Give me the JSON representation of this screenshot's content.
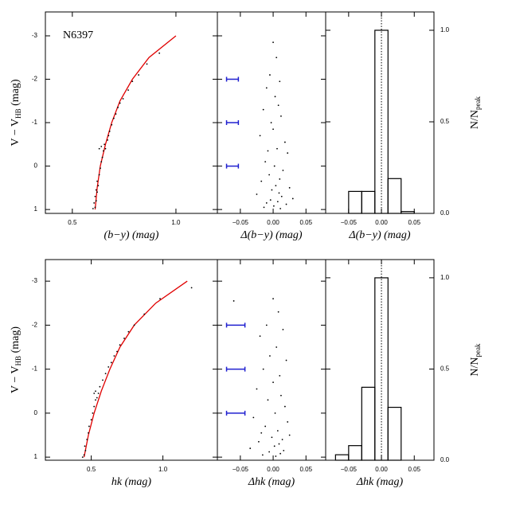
{
  "chart_data": [
    {
      "type": "scatter",
      "label": "N6397",
      "xlabel": "(b−y)  (mag)",
      "ylabel": {
        "text": "V − V",
        "sub": "HB",
        "unit": " (mag)"
      },
      "xlim": [
        0.37,
        1.2
      ],
      "ylim": [
        1.09,
        -3.55
      ],
      "xticks": [
        0.5,
        {
          "value": 1,
          "label": "1.0"
        }
      ],
      "yticks": [
        -3,
        -2,
        -1,
        0,
        1
      ],
      "series": [
        {
          "style": "line",
          "color": "#e00000",
          "x": [
            0.61,
            0.62,
            0.635,
            0.66,
            0.69,
            0.73,
            0.79,
            0.87,
            1.0
          ],
          "y": [
            1.0,
            0.5,
            0,
            -0.5,
            -1.0,
            -1.5,
            -2.0,
            -2.5,
            -3.0
          ]
        },
        {
          "style": "points",
          "color": "#000000",
          "x": [
            0.6,
            0.61,
            0.605,
            0.615,
            0.61,
            0.62,
            0.615,
            0.625,
            0.62,
            0.63,
            0.635,
            0.64,
            0.645,
            0.65,
            0.66,
            0.655,
            0.67,
            0.675,
            0.68,
            0.69,
            0.7,
            0.71,
            0.72,
            0.73,
            0.745,
            0.77,
            0.79,
            0.82,
            0.86,
            0.92,
            0.64,
            0.63
          ],
          "y": [
            0.98,
            0.95,
            0.85,
            0.8,
            0.7,
            0.6,
            0.55,
            0.45,
            0.35,
            0.2,
            0.05,
            -0.1,
            -0.2,
            -0.35,
            -0.4,
            -0.5,
            -0.6,
            -0.7,
            -0.8,
            -0.95,
            -1.1,
            -1.2,
            -1.35,
            -1.45,
            -1.55,
            -1.75,
            -1.95,
            -2.1,
            -2.35,
            -2.6,
            -0.45,
            -0.4
          ]
        }
      ]
    },
    {
      "type": "scatter",
      "xlabel": "Δ(b−y)  (mag)",
      "ytick_labels": false,
      "xlim": [
        -0.085,
        0.08
      ],
      "ylim": [
        1.09,
        -3.55
      ],
      "xticks": [
        {
          "value": -0.05,
          "label": "−0.05"
        },
        {
          "value": 0,
          "label": "0.00"
        },
        {
          "value": 0.05,
          "label": "0.05"
        }
      ],
      "yticks": [
        -3,
        -2,
        -1,
        0,
        1
      ],
      "series": [
        {
          "style": "points",
          "color": "#000000",
          "x": [
            0.0,
            0.005,
            -0.005,
            0.01,
            -0.01,
            0.003,
            0.008,
            -0.015,
            0.012,
            -0.003,
            0.0,
            -0.02,
            0.018,
            0.006,
            -0.008,
            0.022,
            -0.012,
            0.002,
            0.015,
            -0.006,
            0.01,
            -0.018,
            0.004,
            0.025,
            -0.002,
            0.009,
            -0.025,
            0.013,
            0.03,
            -0.004,
            0.007,
            -0.01,
            0.02,
            0.001,
            -0.014,
            0.011
          ],
          "y": [
            -2.85,
            -2.5,
            -2.1,
            -1.95,
            -1.8,
            -1.6,
            -1.4,
            -1.3,
            -1.15,
            -1.0,
            -0.85,
            -0.7,
            -0.55,
            -0.4,
            -0.35,
            -0.3,
            -0.1,
            0.0,
            0.1,
            0.2,
            0.3,
            0.35,
            0.45,
            0.5,
            0.55,
            0.62,
            0.65,
            0.7,
            0.75,
            0.78,
            0.82,
            0.85,
            0.88,
            0.92,
            0.95,
            0.98
          ]
        },
        {
          "style": "errorbar",
          "color": "#2020d0",
          "x": [
            -0.062,
            -0.062,
            -0.062
          ],
          "y": [
            -2,
            -1,
            0
          ],
          "xerr": [
            0.009,
            0.009,
            0.009
          ]
        }
      ]
    },
    {
      "type": "histogram",
      "xlabel": "Δ(b−y)  (mag)",
      "ylabel": {
        "text": "N/N",
        "sub": "peak"
      },
      "xlim": [
        -0.085,
        0.08
      ],
      "ylim": [
        0,
        1.1
      ],
      "xticks": [
        {
          "value": -0.05,
          "label": "−0.05"
        },
        {
          "value": 0,
          "label": "0.00"
        },
        {
          "value": 0.05,
          "label": "0.05"
        }
      ],
      "yticks": [
        {
          "value": 0,
          "label": "0.0"
        },
        0.5,
        {
          "value": 1,
          "label": "1.0"
        }
      ],
      "bins": [
        -0.05,
        -0.03,
        -0.01,
        0.01,
        0.03,
        0.05
      ],
      "values": [
        0.12,
        0.12,
        1.0,
        0.19,
        0.01
      ],
      "color": "#000000",
      "vline": 0
    },
    {
      "type": "scatter",
      "xlabel": "hk  (mag)",
      "ylabel": {
        "text": "V − V",
        "sub": "HB",
        "unit": " (mag)"
      },
      "xlim": [
        0.18,
        1.38
      ],
      "ylim": [
        1.07,
        -3.49
      ],
      "xticks": [
        0.5,
        {
          "value": 1,
          "label": "1.0"
        }
      ],
      "yticks": [
        -3,
        -2,
        -1,
        0,
        1
      ],
      "series": [
        {
          "style": "line",
          "color": "#e00000",
          "x": [
            0.45,
            0.48,
            0.52,
            0.57,
            0.63,
            0.7,
            0.8,
            0.95,
            1.17
          ],
          "y": [
            1.0,
            0.5,
            0,
            -0.5,
            -1.0,
            -1.5,
            -2.0,
            -2.5,
            -3.0
          ]
        },
        {
          "style": "points",
          "color": "#000000",
          "x": [
            0.44,
            0.45,
            0.46,
            0.455,
            0.47,
            0.48,
            0.485,
            0.5,
            0.51,
            0.52,
            0.53,
            0.54,
            0.55,
            0.56,
            0.58,
            0.6,
            0.62,
            0.64,
            0.66,
            0.68,
            0.7,
            0.73,
            0.76,
            0.8,
            0.87,
            0.98,
            1.2,
            0.53,
            0.52
          ],
          "y": [
            1.0,
            0.95,
            0.85,
            0.75,
            0.6,
            0.45,
            0.3,
            0.15,
            0.0,
            -0.15,
            -0.3,
            -0.35,
            -0.45,
            -0.6,
            -0.75,
            -0.9,
            -1.05,
            -1.15,
            -1.3,
            -1.4,
            -1.55,
            -1.7,
            -1.85,
            -2.0,
            -2.25,
            -2.6,
            -2.85,
            -0.5,
            -0.45
          ]
        }
      ]
    },
    {
      "type": "scatter",
      "xlabel": "Δhk  (mag)",
      "ytick_labels": false,
      "xlim": [
        -0.085,
        0.08
      ],
      "ylim": [
        1.07,
        -3.49
      ],
      "xticks": [
        {
          "value": -0.05,
          "label": "−0.05"
        },
        {
          "value": 0,
          "label": "0.00"
        },
        {
          "value": 0.05,
          "label": "0.05"
        }
      ],
      "yticks": [
        -3,
        -2,
        -1,
        0,
        1
      ],
      "series": [
        {
          "style": "points",
          "color": "#000000",
          "x": [
            -0.06,
            0.0,
            0.008,
            -0.01,
            0.015,
            -0.02,
            0.005,
            -0.005,
            0.02,
            -0.015,
            0.01,
            0.0,
            -0.025,
            0.012,
            -0.008,
            0.018,
            0.003,
            -0.03,
            0.022,
            -0.012,
            0.007,
            -0.018,
            0.025,
            -0.002,
            0.014,
            -0.022,
            0.009,
            0.002,
            -0.035,
            0.016,
            -0.006,
            0.011,
            -0.016,
            0.004
          ],
          "y": [
            -2.55,
            -2.6,
            -2.3,
            -2.0,
            -1.9,
            -1.75,
            -1.5,
            -1.3,
            -1.2,
            -1.0,
            -0.85,
            -0.7,
            -0.55,
            -0.4,
            -0.3,
            -0.15,
            0.0,
            0.1,
            0.2,
            0.3,
            0.4,
            0.45,
            0.5,
            0.55,
            0.6,
            0.65,
            0.7,
            0.75,
            0.8,
            0.85,
            0.88,
            0.92,
            0.95,
            0.98
          ]
        },
        {
          "style": "errorbar",
          "color": "#2020d0",
          "x": [
            -0.057,
            -0.057,
            -0.057
          ],
          "y": [
            -2,
            -1,
            0
          ],
          "xerr": [
            0.014,
            0.014,
            0.014
          ]
        }
      ]
    },
    {
      "type": "histogram",
      "xlabel": "Δhk  (mag)",
      "ylabel": {
        "text": "N/N",
        "sub": "peak"
      },
      "xlim": [
        -0.085,
        0.08
      ],
      "ylim": [
        0,
        1.1
      ],
      "xticks": [
        {
          "value": -0.05,
          "label": "−0.05"
        },
        {
          "value": 0,
          "label": "0.00"
        },
        {
          "value": 0.05,
          "label": "0.05"
        }
      ],
      "yticks": [
        {
          "value": 0,
          "label": "0.0"
        },
        0.5,
        {
          "value": 1,
          "label": "1.0"
        }
      ],
      "bins": [
        -0.07,
        -0.05,
        -0.03,
        -0.01,
        0.01,
        0.03
      ],
      "values": [
        0.03,
        0.08,
        0.4,
        1.0,
        0.29
      ],
      "color": "#000000",
      "vline": 0
    }
  ]
}
